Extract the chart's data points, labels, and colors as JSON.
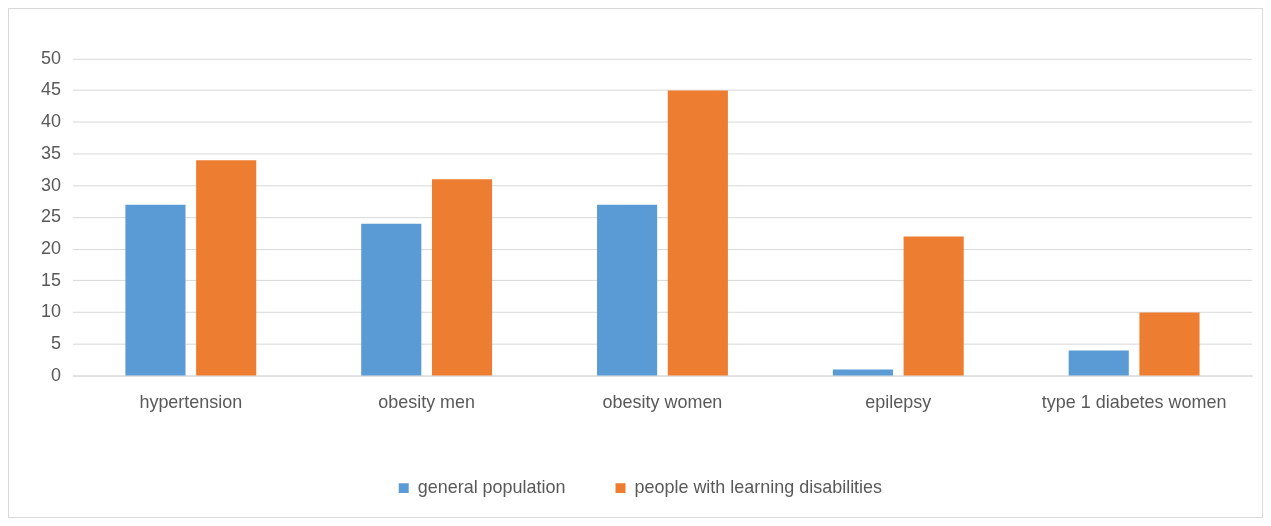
{
  "chart_data": {
    "type": "bar",
    "categories": [
      "hypertension",
      "obesity men",
      "obesity women",
      "epilepsy",
      "type 1 diabetes women"
    ],
    "series": [
      {
        "name": "general population",
        "color": "#5b9bd5",
        "values": [
          27,
          24,
          27,
          1,
          4
        ]
      },
      {
        "name": "people with learning disabilities",
        "color": "#ed7d31",
        "values": [
          34,
          31,
          45,
          22,
          10
        ]
      }
    ],
    "ylim": [
      0,
      50
    ],
    "yticks": [
      0,
      5,
      10,
      15,
      20,
      25,
      30,
      35,
      40,
      45,
      50
    ],
    "grid": "y",
    "legend": "bottom"
  }
}
